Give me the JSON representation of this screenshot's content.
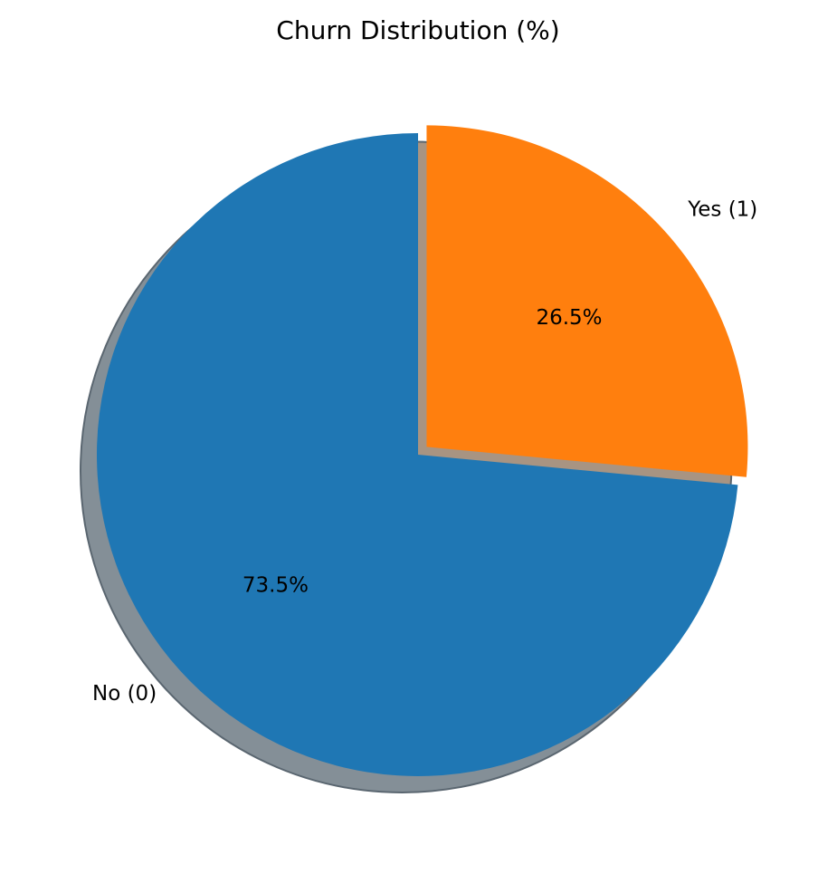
{
  "chart_data": {
    "type": "pie",
    "title": "Churn Distribution (%)",
    "slices": [
      {
        "label": "No (0)",
        "value": 73.5,
        "pct_label": "73.5%",
        "color": "#1f77b4",
        "shadow_color": "#848f97",
        "exploded": false
      },
      {
        "label": "Yes (1)",
        "value": 26.5,
        "pct_label": "26.5%",
        "color": "#ff7f0e",
        "shadow_color": "#a89482",
        "exploded": true
      }
    ],
    "start_angle": 90,
    "direction": "counterclockwise",
    "shadow": true,
    "legend": "none"
  }
}
